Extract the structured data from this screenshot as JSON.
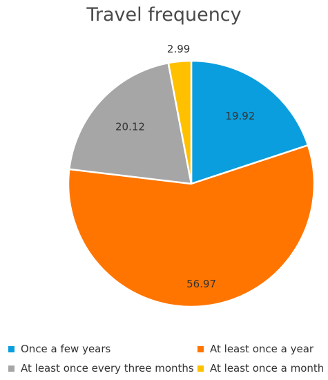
{
  "chart_data": {
    "type": "pie",
    "title": "Travel frequency",
    "categories": [
      "Once a few years",
      "At least once a year",
      "At least once every three months",
      "At least once a month"
    ],
    "values": [
      19.92,
      56.97,
      20.12,
      2.99
    ],
    "value_labels": [
      "19.92",
      "56.97",
      "20.12",
      "2.99"
    ],
    "colors": [
      "#0a9ede",
      "#ff7500",
      "#a6a6a6",
      "#ffc000"
    ],
    "start": "12 o'clock, clockwise",
    "legend_position": "bottom"
  }
}
